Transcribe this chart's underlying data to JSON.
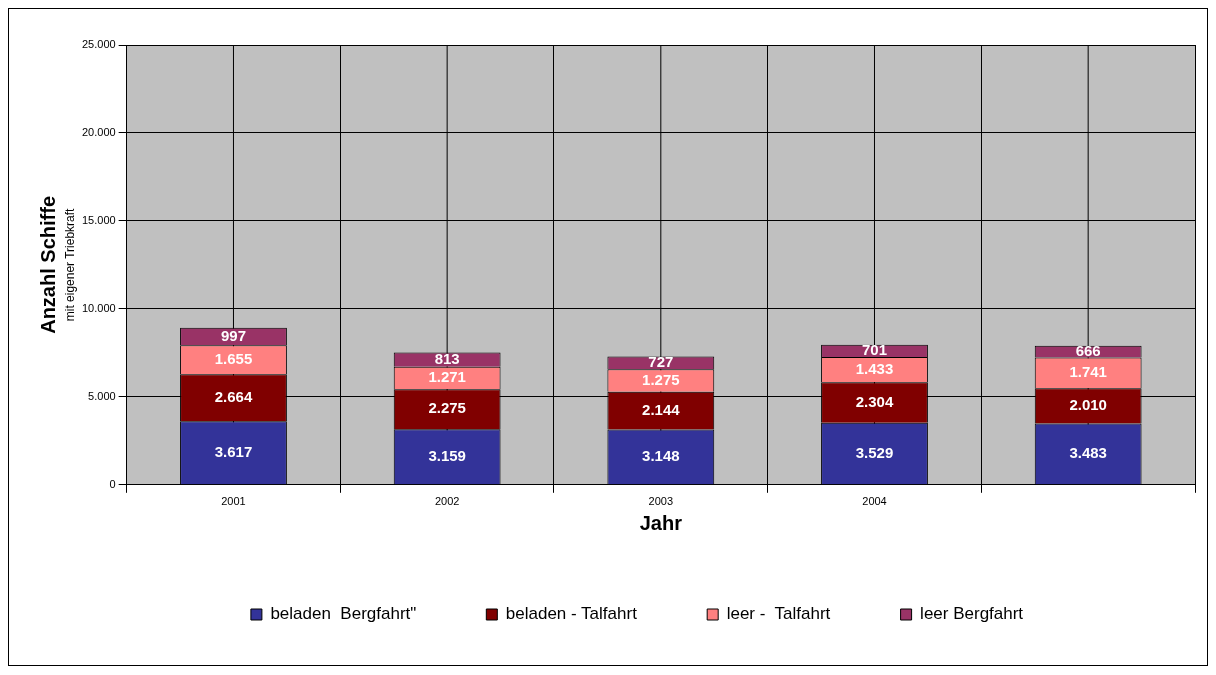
{
  "chart_data": {
    "type": "bar",
    "stacked": true,
    "categories": [
      "2001",
      "2002",
      "2003",
      "2004",
      null
    ],
    "xlabel": "Jahr",
    "ylabel": "Anzahl Schiffe",
    "annotations": [
      "mit eigener Triebkraft"
    ],
    "series": [
      {
        "name": "beladen  Bergfahrt\"",
        "color": "#333399",
        "values": [
          3617,
          3159,
          3148,
          3529,
          3483
        ],
        "value_labels": [
          "3.617",
          "3.159",
          "3.148",
          "3.529",
          "3.483"
        ]
      },
      {
        "name": "beladen - Talfahrt",
        "color": "#800000",
        "values": [
          2664,
          2275,
          2144,
          2304,
          2010
        ],
        "value_labels": [
          "2.664",
          "2.275",
          "2.144",
          "2.304",
          "2.010"
        ]
      },
      {
        "name": "leer -  Talfahrt",
        "color": "#ff8080",
        "values": [
          1655,
          1271,
          1275,
          1433,
          1741
        ],
        "value_labels": [
          "1.655",
          "1.271",
          "1.275",
          "1.433",
          "1.741"
        ]
      },
      {
        "name": "leer Bergfahrt",
        "color": "#993366",
        "values": [
          997,
          813,
          727,
          701,
          666
        ],
        "value_labels": [
          "997",
          "813",
          "727",
          "701",
          "666"
        ]
      }
    ],
    "ylim": [
      0,
      25000
    ],
    "yticks": [
      {
        "value": 0,
        "label": "0"
      },
      {
        "value": 5000,
        "label": "5.000"
      },
      {
        "value": 10000,
        "label": "10.000"
      },
      {
        "value": 15000,
        "label": "15.000"
      },
      {
        "value": 20000,
        "label": "20.000"
      },
      {
        "value": 25000,
        "label": "25.000"
      }
    ],
    "grid": true,
    "legend": "bottom"
  }
}
